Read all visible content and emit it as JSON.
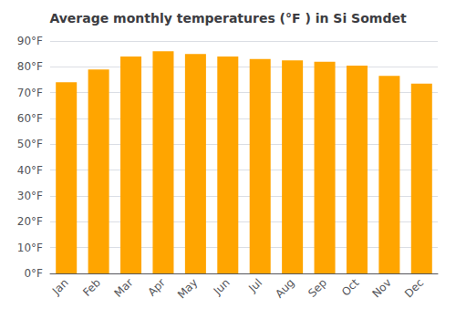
{
  "chart_data": {
    "type": "bar",
    "title": "Average monthly temperatures (°F ) in Si Somdet",
    "categories": [
      "Jan",
      "Feb",
      "Mar",
      "Apr",
      "May",
      "Jun",
      "Jul",
      "Aug",
      "Sep",
      "Oct",
      "Nov",
      "Dec"
    ],
    "values": [
      74,
      79,
      84,
      86,
      85,
      84,
      83,
      82.5,
      82,
      80.5,
      76.5,
      73.5
    ],
    "color": "#FFA500",
    "ylim": [
      0,
      90
    ],
    "yticks": [
      {
        "value": 0,
        "label": "0°F"
      },
      {
        "value": 10,
        "label": "10°F"
      },
      {
        "value": 20,
        "label": "20°F"
      },
      {
        "value": 30,
        "label": "30°F"
      },
      {
        "value": 40,
        "label": "40°F"
      },
      {
        "value": 50,
        "label": "50°F"
      },
      {
        "value": 60,
        "label": "60°F"
      },
      {
        "value": 70,
        "label": "70°F"
      },
      {
        "value": 80,
        "label": "80°F"
      },
      {
        "value": 90,
        "label": "90°F"
      }
    ],
    "grid": true
  }
}
